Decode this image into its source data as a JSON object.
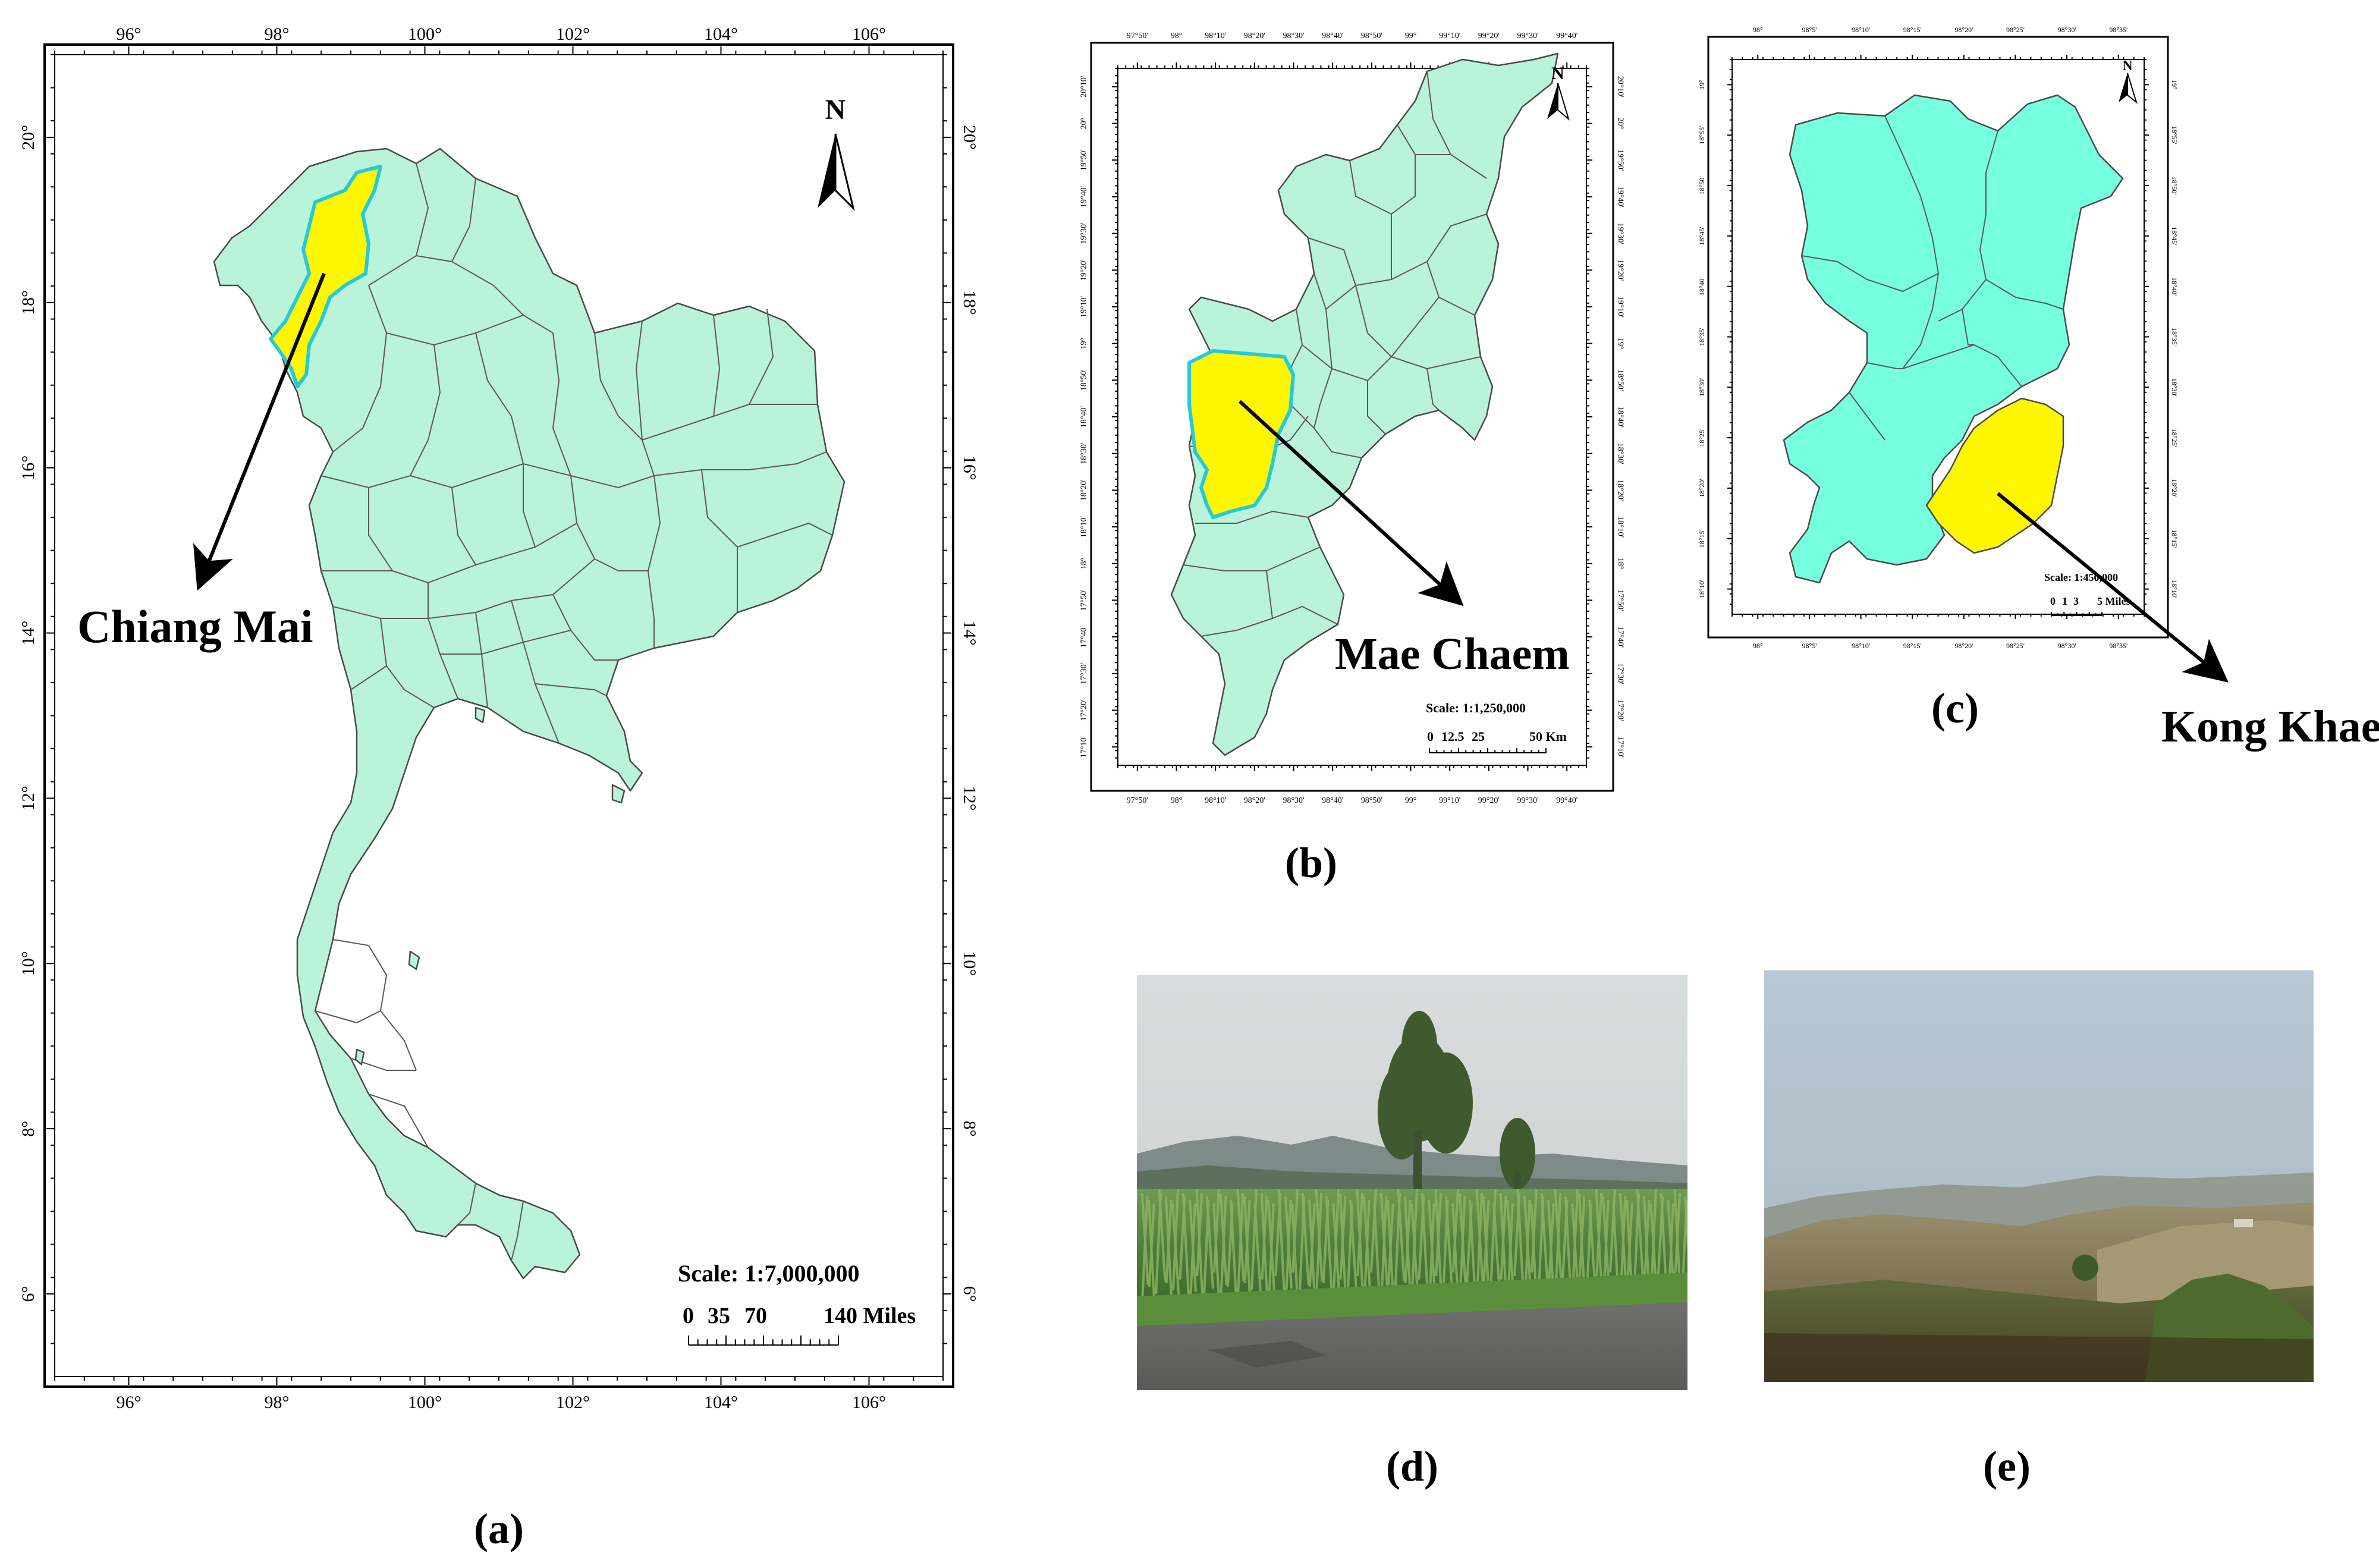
{
  "panels": {
    "a": {
      "label": "(a)",
      "place_label": "Chiang Mai",
      "north": "N",
      "scale_title": "Scale: 1:7,000,000",
      "scale_values": [
        "0",
        "35",
        "70",
        "140 Miles"
      ],
      "lon_ticks": [
        "96°",
        "98°",
        "100°",
        "102°",
        "104°",
        "106°"
      ],
      "lat_ticks": [
        "20°",
        "18°",
        "16°",
        "14°",
        "12°",
        "10°",
        "8°",
        "6°"
      ]
    },
    "b": {
      "label": "(b)",
      "place_label": "Mae Chaem",
      "north": "N",
      "scale_title": "Scale: 1:1,250,000",
      "scale_values": [
        "0",
        "12.5",
        "25",
        "50 Km"
      ],
      "lon_ticks": [
        "97°50'",
        "98°",
        "98°10'",
        "98°20'",
        "98°30'",
        "98°40'",
        "98°50'",
        "99°",
        "99°10'",
        "99°20'",
        "99°30'",
        "99°40'"
      ],
      "lat_ticks": [
        "20°10'",
        "20°",
        "19°50'",
        "19°40'",
        "19°30'",
        "19°20'",
        "19°10'",
        "19°",
        "18°50'",
        "18°40'",
        "18°30'",
        "18°20'",
        "18°10'",
        "18°",
        "17°50'",
        "17°40'",
        "17°30'",
        "17°20'",
        "17°10'"
      ]
    },
    "c": {
      "label": "(c)",
      "place_label": "Kong Khaek",
      "north": "N",
      "scale_title": "Scale: 1:450,000",
      "scale_values": [
        "0",
        "1",
        "3",
        "5 Miles"
      ],
      "lon_ticks": [
        "98°",
        "98°5'",
        "98°10'",
        "98°15'",
        "98°20'",
        "98°25'",
        "98°30'",
        "98°35'"
      ],
      "lat_ticks": [
        "19°",
        "18°55'",
        "18°50'",
        "18°45'",
        "18°40'",
        "18°35'",
        "18°30'",
        "18°25'",
        "18°20'",
        "18°15'",
        "18°10'"
      ]
    },
    "d": {
      "label": "(d)",
      "photo": "corn-field-photo"
    },
    "e": {
      "label": "(e)",
      "photo": "hazy-hills-photo"
    }
  },
  "colors": {
    "province_fill": "#b9f3d9",
    "district_fill": "#76ffdf",
    "highlight": "#fff700",
    "highlight_outline": "#26c9d8"
  }
}
